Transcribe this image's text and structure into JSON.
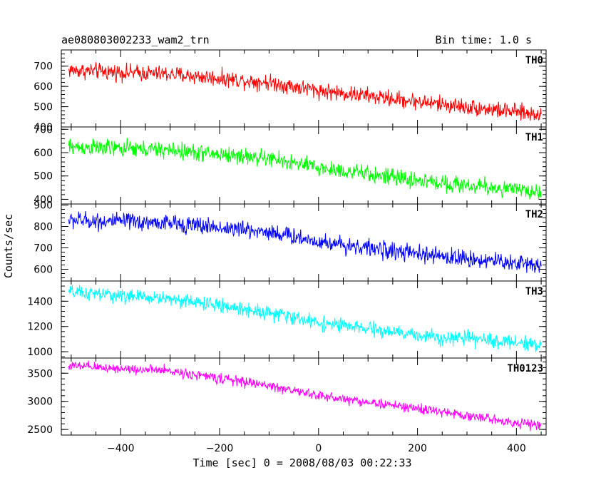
{
  "header": {
    "title": "ae080803002233_wam2_trn",
    "bin_time": "Bin time: 1.0 s"
  },
  "axes": {
    "ylabel": "Counts/sec",
    "xlabel": "Time [sec] 0 = 2008/08/03 00:22:33"
  },
  "chart_data": {
    "type": "line",
    "xlim": [
      -520,
      460
    ],
    "x_range_data": [
      -505,
      450
    ],
    "x_ticks": [
      -400,
      -200,
      0,
      200,
      400
    ],
    "x_tick_labels": [
      "−400",
      "−200",
      "0",
      "200",
      "400"
    ],
    "series": [
      {
        "name": "TH0",
        "color": "#ff0000",
        "ylim": [
          400,
          780
        ],
        "yticks": [
          400,
          500,
          600,
          700
        ],
        "trend": [
          [
            -505,
            680
          ],
          [
            -300,
            660
          ],
          [
            -100,
            620
          ],
          [
            0,
            580
          ],
          [
            200,
            525
          ],
          [
            450,
            460
          ]
        ],
        "noise": 50
      },
      {
        "name": "TH1",
        "color": "#00ff00",
        "ylim": [
          380,
          710
        ],
        "yticks": [
          400,
          500,
          600,
          700
        ],
        "trend": [
          [
            -505,
            625
          ],
          [
            -300,
            610
          ],
          [
            -100,
            575
          ],
          [
            0,
            535
          ],
          [
            200,
            480
          ],
          [
            450,
            430
          ]
        ],
        "noise": 45
      },
      {
        "name": "TH2",
        "color": "#0000ff",
        "ylim": [
          545,
          905
        ],
        "yticks": [
          600,
          700,
          800,
          900
        ],
        "trend": [
          [
            -505,
            830
          ],
          [
            -300,
            815
          ],
          [
            -100,
            775
          ],
          [
            0,
            730
          ],
          [
            200,
            670
          ],
          [
            450,
            620
          ]
        ],
        "noise": 50
      },
      {
        "name": "TH3",
        "color": "#00ffff",
        "ylim": [
          950,
          1560
        ],
        "yticks": [
          1000,
          1200,
          1400
        ],
        "trend": [
          [
            -505,
            1470
          ],
          [
            -300,
            1420
          ],
          [
            -100,
            1310
          ],
          [
            0,
            1230
          ],
          [
            200,
            1130
          ],
          [
            450,
            1060
          ]
        ],
        "noise": 70
      },
      {
        "name": "TH0123",
        "color": "#ff00ff",
        "ylim": [
          2400,
          3770
        ],
        "yticks": [
          2500,
          3000,
          3500
        ],
        "trend": [
          [
            -505,
            3630
          ],
          [
            -300,
            3540
          ],
          [
            -100,
            3280
          ],
          [
            0,
            3100
          ],
          [
            200,
            2870
          ],
          [
            450,
            2560
          ]
        ],
        "noise": 110
      }
    ]
  }
}
